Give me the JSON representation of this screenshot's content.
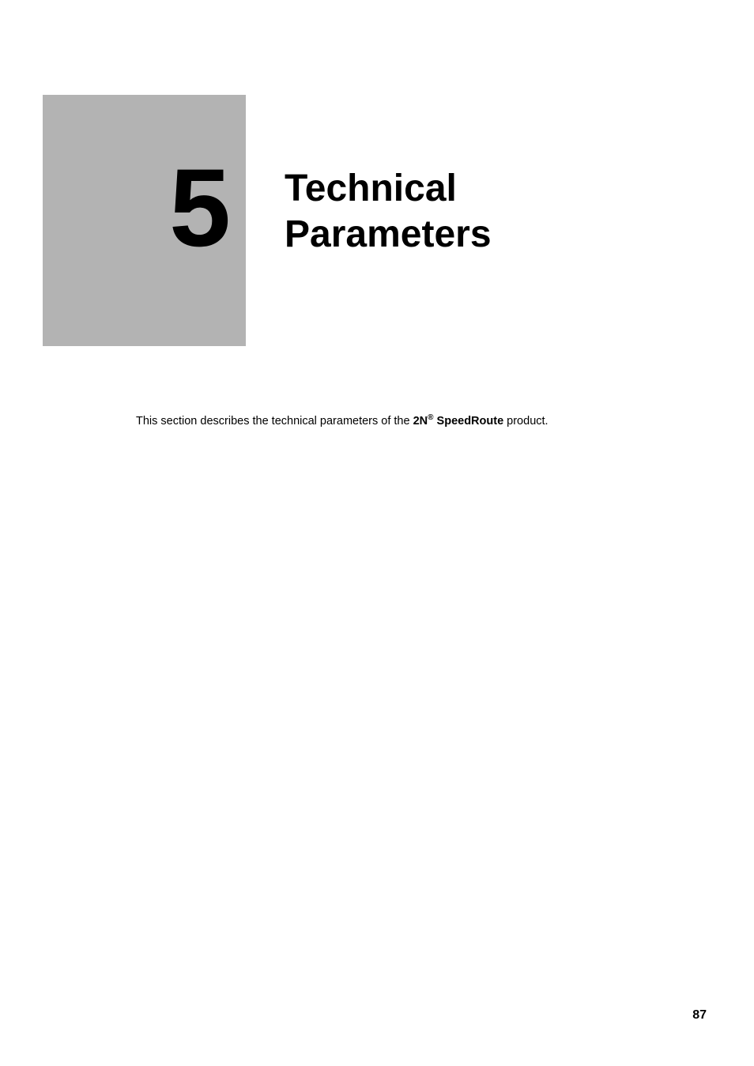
{
  "chapter": {
    "number": "5",
    "title_line1": "Technical",
    "title_line2": "Parameters"
  },
  "description": {
    "prefix": "This section describes the technical parameters of the ",
    "brand_prefix": "2N",
    "reg_symbol": "®",
    "product_name": " SpeedRoute",
    "suffix": " product."
  },
  "page_number": "87",
  "colors": {
    "chapter_box_bg": "#b3b3b3",
    "text": "#000000",
    "page_bg": "#ffffff"
  }
}
